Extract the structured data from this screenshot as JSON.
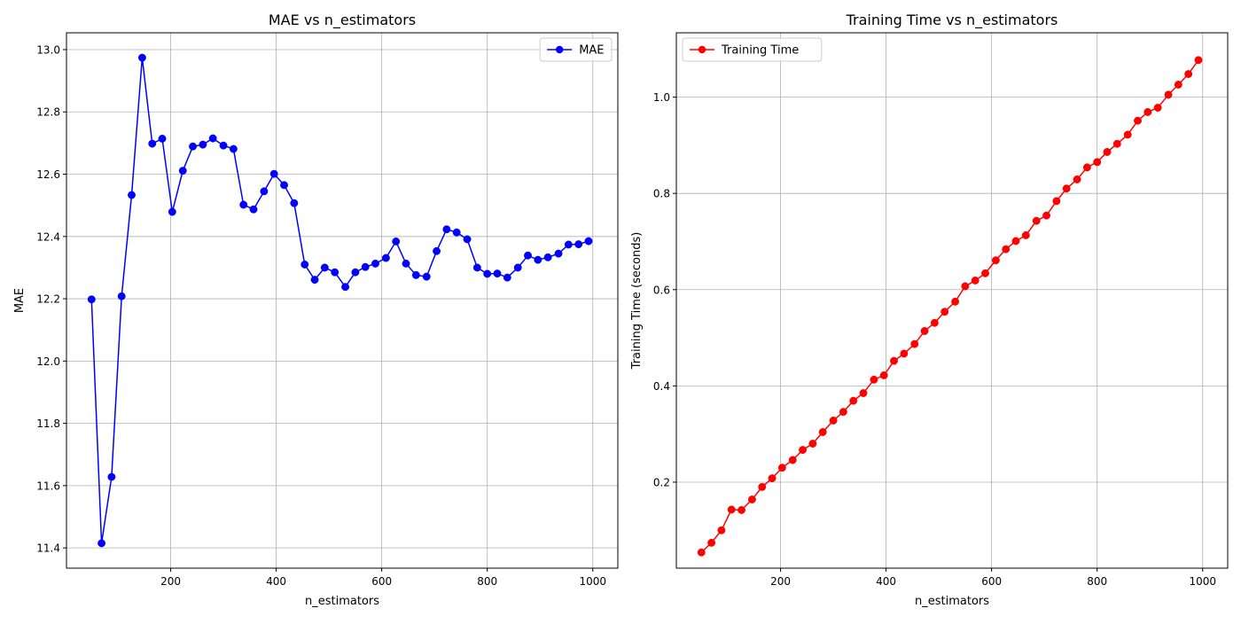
{
  "chart_data": [
    {
      "type": "line",
      "title": "MAE vs n_estimators",
      "xlabel": "n_estimators",
      "ylabel": "MAE",
      "xlim": [
        2.5,
        1047.5
      ],
      "ylim": [
        11.335,
        13.054
      ],
      "xticks": [
        200,
        400,
        600,
        800,
        1000
      ],
      "yticks": [
        11.4,
        11.6,
        11.8,
        12.0,
        12.2,
        12.4,
        12.6,
        12.8,
        13.0
      ],
      "grid": true,
      "legend_position": "top-right",
      "series": [
        {
          "name": "MAE",
          "color": "#0000ff",
          "marker": "circle",
          "x": [
            50,
            69,
            88,
            107,
            126,
            146,
            165,
            184,
            203,
            223,
            242,
            261,
            280,
            300,
            319,
            338,
            357,
            377,
            396,
            415,
            434,
            454,
            473,
            492,
            511,
            531,
            550,
            569,
            588,
            608,
            627,
            646,
            665,
            685,
            704,
            723,
            742,
            762,
            781,
            800,
            819,
            838,
            858,
            877,
            896,
            915,
            935,
            954,
            973,
            992
          ],
          "values": [
            12.198,
            11.415,
            11.628,
            12.208,
            12.533,
            12.974,
            12.698,
            12.714,
            12.479,
            12.611,
            12.689,
            12.695,
            12.715,
            12.692,
            12.681,
            12.502,
            12.487,
            12.545,
            12.601,
            12.565,
            12.507,
            12.31,
            12.261,
            12.3,
            12.285,
            12.238,
            12.285,
            12.302,
            12.313,
            12.331,
            12.384,
            12.313,
            12.276,
            12.271,
            12.353,
            12.423,
            12.413,
            12.391,
            12.3,
            12.28,
            12.281,
            12.268,
            12.3,
            12.339,
            12.325,
            12.333,
            12.345,
            12.374,
            12.375,
            12.385
          ]
        }
      ]
    },
    {
      "type": "line",
      "title": "Training Time vs n_estimators",
      "xlabel": "n_estimators",
      "ylabel": "Training Time (seconds)",
      "xlim": [
        2.5,
        1047.5
      ],
      "ylim": [
        0.0213,
        1.1337
      ],
      "xticks": [
        200,
        400,
        600,
        800,
        1000
      ],
      "yticks": [
        0.2,
        0.4,
        0.6,
        0.8,
        1.0
      ],
      "grid": true,
      "legend_position": "top-left",
      "series": [
        {
          "name": "Training Time",
          "color": "#ff0000",
          "marker": "circle",
          "x": [
            50,
            69,
            88,
            107,
            126,
            146,
            165,
            184,
            203,
            223,
            242,
            261,
            280,
            300,
            319,
            338,
            357,
            377,
            396,
            415,
            434,
            454,
            473,
            492,
            511,
            531,
            550,
            569,
            588,
            608,
            627,
            646,
            665,
            685,
            704,
            723,
            742,
            762,
            781,
            800,
            819,
            838,
            858,
            877,
            896,
            915,
            935,
            954,
            973,
            992
          ],
          "values": [
            0.054,
            0.074,
            0.1,
            0.143,
            0.142,
            0.164,
            0.19,
            0.208,
            0.23,
            0.246,
            0.267,
            0.28,
            0.304,
            0.328,
            0.346,
            0.369,
            0.385,
            0.413,
            0.422,
            0.452,
            0.467,
            0.487,
            0.514,
            0.531,
            0.554,
            0.575,
            0.607,
            0.619,
            0.634,
            0.661,
            0.684,
            0.701,
            0.713,
            0.743,
            0.754,
            0.784,
            0.81,
            0.829,
            0.854,
            0.865,
            0.886,
            0.903,
            0.922,
            0.951,
            0.969,
            0.978,
            1.005,
            1.026,
            1.048,
            1.077
          ]
        }
      ]
    }
  ]
}
